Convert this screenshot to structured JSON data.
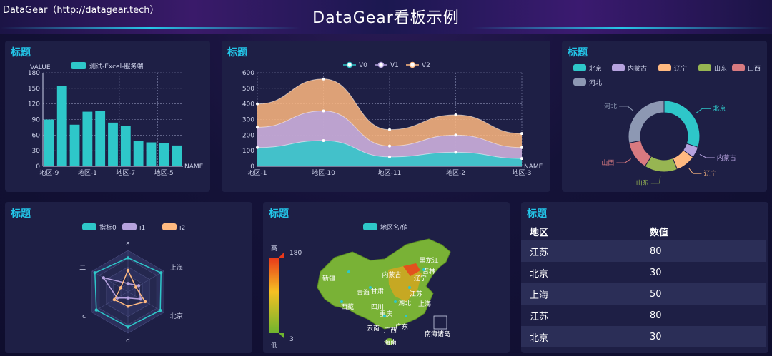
{
  "header": {
    "brand": "DataGear（http://datagear.tech）",
    "title": "DataGear看板示例"
  },
  "colors": {
    "teal": "#2ec7c9",
    "purple": "#b6a2de",
    "orange": "#ffb980",
    "green": "#97b552",
    "red": "#d87a80",
    "grey": "#8d98b3",
    "accent": "#23c5e8"
  },
  "bar_panel": {
    "title": "标题",
    "chart_data": {
      "type": "bar",
      "ylabel": "VALUE",
      "xlabel": "NAME",
      "series": [
        {
          "name": "测试-Excel-服务端",
          "values": [
            90,
            154,
            80,
            105,
            107,
            84,
            78,
            49,
            46,
            44,
            40
          ]
        }
      ],
      "ylim": [
        0,
        180
      ],
      "yticks": [
        "0",
        "30",
        "60",
        "90",
        "120",
        "150",
        "180"
      ],
      "xtick_labels": [
        "地区-9",
        "地区-1",
        "地区-7",
        "地区-5"
      ]
    }
  },
  "area_panel": {
    "title": "标题",
    "chart_data": {
      "type": "area",
      "xlabel": "NAME",
      "categories": [
        "地区-1",
        "地区-10",
        "地区-11",
        "地区-2",
        "地区-3"
      ],
      "series": [
        {
          "name": "V0",
          "values": [
            120,
            165,
            60,
            90,
            50
          ]
        },
        {
          "name": "V1",
          "values": [
            250,
            355,
            130,
            200,
            120
          ]
        },
        {
          "name": "V2",
          "values": [
            400,
            560,
            235,
            330,
            210
          ]
        }
      ],
      "ylim": [
        0,
        600
      ],
      "yticks": [
        "0",
        "100",
        "200",
        "300",
        "400",
        "500",
        "600"
      ]
    }
  },
  "pie_panel": {
    "title": "标题",
    "chart_data": {
      "type": "pie",
      "slices": [
        {
          "name": "北京",
          "value": 30
        },
        {
          "name": "内蒙古",
          "value": 5
        },
        {
          "name": "辽宁",
          "value": 9
        },
        {
          "name": "山东",
          "value": 15
        },
        {
          "name": "山西",
          "value": 13
        },
        {
          "name": "河北",
          "value": 28
        }
      ]
    }
  },
  "radar_panel": {
    "title": "标题",
    "chart_data": {
      "type": "radar",
      "indicators": [
        "a",
        "上海",
        "北京",
        "d",
        "c",
        "二"
      ],
      "series": [
        {
          "name": "指标0",
          "values": [
            0.82,
            0.92,
            0.9,
            0.85,
            0.88,
            0.92
          ]
        },
        {
          "name": "i1",
          "values": [
            0.2,
            0.3,
            0.35,
            0.15,
            0.3,
            0.68
          ]
        },
        {
          "name": "i2",
          "values": [
            0.52,
            0.22,
            0.48,
            0.35,
            0.38,
            0.2
          ]
        }
      ]
    }
  },
  "map_panel": {
    "title": "标题",
    "legend": "地区名/值",
    "scale_high_label": "高",
    "scale_low_label": "低",
    "scale_max": "180",
    "scale_min": "3",
    "places": [
      "黑龙江",
      "吉林",
      "辽宁",
      "内蒙古",
      "新疆",
      "青海",
      "甘肃",
      "西藏",
      "四川",
      "重庆",
      "湖北",
      "江苏",
      "上海",
      "云南",
      "广西",
      "广东",
      "海南",
      "南海诸岛"
    ]
  },
  "table_panel": {
    "title": "标题",
    "headers": [
      "地区",
      "数值"
    ],
    "rows": [
      {
        "region": "江苏",
        "value": "80"
      },
      {
        "region": "北京",
        "value": "30"
      },
      {
        "region": "上海",
        "value": "50"
      },
      {
        "region": "江苏",
        "value": "80"
      },
      {
        "region": "北京",
        "value": "30"
      }
    ]
  }
}
